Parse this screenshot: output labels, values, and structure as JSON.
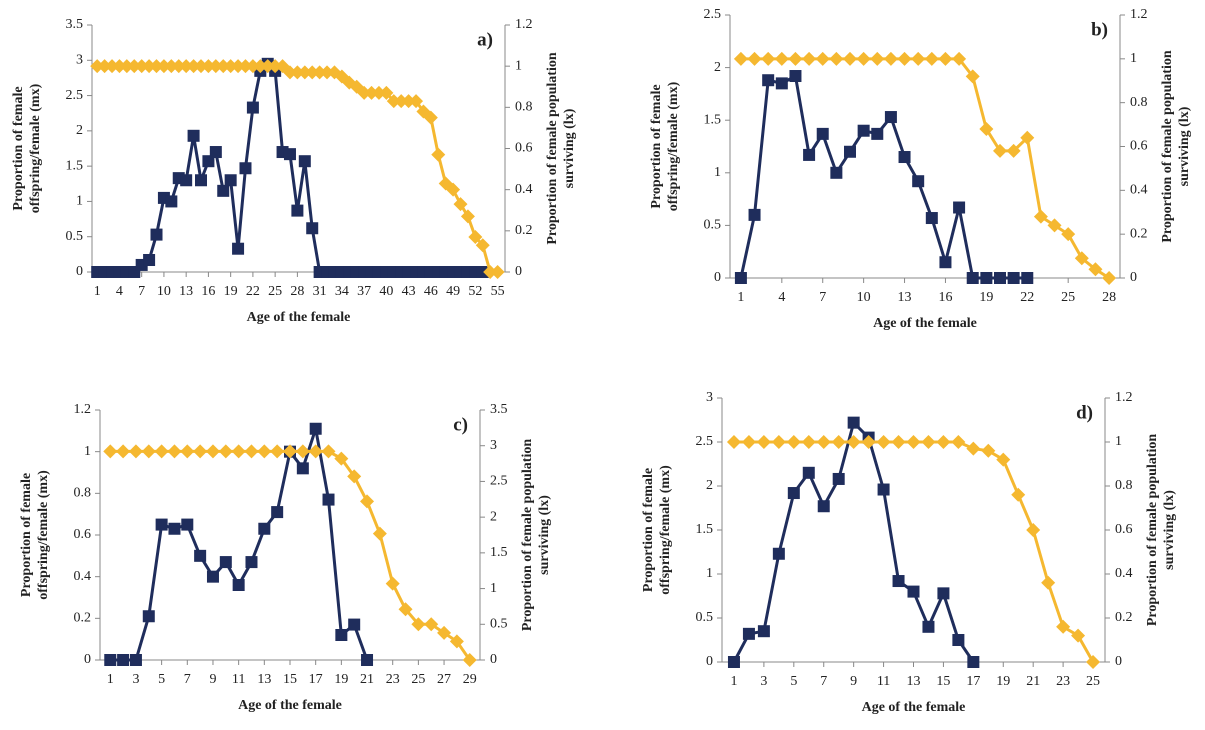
{
  "chart_data": [
    {
      "type": "line",
      "label": "a)",
      "xlabel": "Age of the female",
      "ylabel": [
        "Proportion of female",
        "offspring/female (mx)"
      ],
      "y2label": [
        "Proportion of female population",
        "surviving  (lx)"
      ],
      "x": [
        1,
        2,
        3,
        4,
        5,
        6,
        7,
        8,
        9,
        10,
        11,
        12,
        13,
        14,
        15,
        16,
        17,
        18,
        19,
        20,
        21,
        22,
        23,
        24,
        25,
        26,
        27,
        28,
        29,
        30,
        31,
        32,
        33,
        34,
        35,
        36,
        37,
        38,
        39,
        40,
        41,
        42,
        43,
        44,
        45,
        46,
        47,
        48,
        49,
        50,
        51,
        52,
        53,
        54,
        55
      ],
      "xlim": [
        0.3,
        56
      ],
      "xticks": [
        1,
        4,
        7,
        10,
        13,
        16,
        19,
        22,
        25,
        28,
        31,
        34,
        37,
        40,
        43,
        46,
        49,
        52,
        55
      ],
      "ylim": [
        0,
        3.5
      ],
      "yticks": [
        0,
        0.5,
        1,
        1.5,
        2,
        2.5,
        3,
        3.5
      ],
      "y2lim": [
        0,
        1.2
      ],
      "y2ticks": [
        0,
        0.2,
        0.4,
        0.6,
        0.8,
        1,
        1.2
      ],
      "series": [
        {
          "color": "#1f2d5c",
          "marker": "square",
          "values": [
            0,
            0,
            0,
            0,
            0,
            0,
            0.1,
            0.17,
            0.53,
            1.05,
            1,
            1.33,
            1.3,
            1.93,
            1.3,
            1.57,
            1.7,
            1.15,
            1.3,
            0.33,
            1.47,
            2.33,
            2.85,
            2.95,
            2.85,
            1.7,
            1.67,
            0.87,
            1.57,
            0.62,
            0,
            0,
            0,
            0,
            0,
            0,
            0,
            0,
            0,
            0,
            0,
            0,
            0,
            0,
            0,
            0,
            0,
            0,
            0,
            0,
            0,
            0,
            0,
            null,
            null
          ]
        },
        {
          "color": "#f5b830",
          "marker": "diamond",
          "axis": "y2",
          "values": [
            1,
            1,
            1,
            1,
            1,
            1,
            1,
            1,
            1,
            1,
            1,
            1,
            1,
            1,
            1,
            1,
            1,
            1,
            1,
            1,
            1,
            1,
            1,
            1,
            1,
            1,
            0.97,
            0.97,
            0.97,
            0.97,
            0.97,
            0.97,
            0.97,
            0.95,
            0.92,
            0.9,
            0.87,
            0.87,
            0.87,
            0.87,
            0.83,
            0.83,
            0.83,
            0.83,
            0.78,
            0.75,
            0.57,
            0.43,
            0.4,
            0.33,
            0.27,
            0.17,
            0.13,
            0,
            0
          ]
        }
      ]
    },
    {
      "type": "line",
      "label": "b)",
      "xlabel": "Age of the female",
      "ylabel": [
        "Proportion of female",
        "offspring/female (mx)"
      ],
      "y2label": [
        "Proportion of female population",
        "surviving  (lx)"
      ],
      "x": [
        1,
        2,
        3,
        4,
        5,
        6,
        7,
        8,
        9,
        10,
        11,
        12,
        13,
        14,
        15,
        16,
        17,
        18,
        19,
        20,
        21,
        22,
        23,
        24,
        25,
        26,
        27,
        28
      ],
      "xlim": [
        0.2,
        28.8
      ],
      "xticks": [
        1,
        4,
        7,
        10,
        13,
        16,
        19,
        22,
        25,
        28
      ],
      "ylim": [
        0,
        2.5
      ],
      "yticks": [
        0,
        0.5,
        1,
        1.5,
        2,
        2.5
      ],
      "y2lim": [
        0,
        1.2
      ],
      "y2ticks": [
        0,
        0.2,
        0.4,
        0.6,
        0.8,
        1,
        1.2
      ],
      "series": [
        {
          "color": "#1f2d5c",
          "marker": "square",
          "values": [
            0,
            0.6,
            1.88,
            1.85,
            1.92,
            1.17,
            1.37,
            1,
            1.2,
            1.4,
            1.37,
            1.53,
            1.15,
            0.92,
            0.57,
            0.15,
            0.67,
            0,
            0,
            0,
            0,
            0,
            null,
            null,
            null,
            null,
            null,
            null
          ]
        },
        {
          "color": "#f5b830",
          "marker": "diamond",
          "axis": "y2",
          "values": [
            1,
            1,
            1,
            1,
            1,
            1,
            1,
            1,
            1,
            1,
            1,
            1,
            1,
            1,
            1,
            1,
            1,
            0.92,
            0.68,
            0.58,
            0.58,
            0.64,
            0.28,
            0.24,
            0.2,
            0.09,
            0.04,
            0
          ]
        }
      ]
    },
    {
      "type": "line",
      "label": "c)",
      "xlabel": "Age of the female",
      "ylabel": [
        "Proportion of female",
        "offspring/female (mx)"
      ],
      "y2label": [
        "Proportion of female population",
        "surviving  (lx)"
      ],
      "x": [
        1,
        2,
        3,
        4,
        5,
        6,
        7,
        8,
        9,
        10,
        11,
        12,
        13,
        14,
        15,
        16,
        17,
        18,
        19,
        20,
        21,
        22,
        23,
        24,
        25,
        26,
        27,
        28,
        29
      ],
      "xlim": [
        0.2,
        29.8
      ],
      "xticks": [
        1,
        3,
        5,
        7,
        9,
        11,
        13,
        15,
        17,
        19,
        21,
        23,
        25,
        27,
        29
      ],
      "ylim": [
        0,
        1.2
      ],
      "yticks": [
        0,
        0.2,
        0.4,
        0.6,
        0.8,
        1,
        1.2
      ],
      "y2lim": [
        0,
        3.5
      ],
      "y2ticks": [
        0,
        0.5,
        1,
        1.5,
        2,
        2.5,
        3,
        3.5
      ],
      "series": [
        {
          "color": "#1f2d5c",
          "marker": "square",
          "values": [
            0,
            0,
            0,
            0.21,
            0.65,
            0.63,
            0.65,
            0.5,
            0.4,
            0.47,
            0.36,
            0.47,
            0.63,
            0.71,
            1,
            0.92,
            1.11,
            0.77,
            0.12,
            0.17,
            0,
            null,
            null,
            null,
            null,
            null,
            null,
            null,
            null
          ]
        },
        {
          "color": "#f5b830",
          "marker": "diamond",
          "axis": "y2",
          "values": [
            2.92,
            2.92,
            2.92,
            2.92,
            2.92,
            2.92,
            2.92,
            2.92,
            2.92,
            2.92,
            2.92,
            2.92,
            2.92,
            2.92,
            2.92,
            2.92,
            2.92,
            2.92,
            2.82,
            2.57,
            2.22,
            1.77,
            1.07,
            0.71,
            0.5,
            0.5,
            0.38,
            0.26,
            0
          ]
        }
      ]
    },
    {
      "type": "line",
      "label": "d)",
      "xlabel": "Age of the female",
      "ylabel": [
        "Proportion of female",
        "offspring/female (mx)"
      ],
      "y2label": [
        "Proportion of female population",
        "surviving  (lx)"
      ],
      "x": [
        1,
        2,
        3,
        4,
        5,
        6,
        7,
        8,
        9,
        10,
        11,
        12,
        13,
        14,
        15,
        16,
        17,
        18,
        19,
        20,
        21,
        22,
        23,
        24,
        25
      ],
      "xlim": [
        0.2,
        25.8
      ],
      "xticks": [
        1,
        3,
        5,
        7,
        9,
        11,
        13,
        15,
        17,
        19,
        21,
        23,
        25
      ],
      "ylim": [
        0,
        3
      ],
      "yticks": [
        0,
        0.5,
        1,
        1.5,
        2,
        2.5,
        3
      ],
      "y2lim": [
        0,
        1.2
      ],
      "y2ticks": [
        0,
        0.2,
        0.4,
        0.6,
        0.8,
        1,
        1.2
      ],
      "series": [
        {
          "color": "#1f2d5c",
          "marker": "square",
          "values": [
            0,
            0.32,
            0.35,
            1.23,
            1.92,
            2.15,
            1.77,
            2.08,
            2.72,
            2.55,
            1.96,
            0.92,
            0.8,
            0.4,
            0.78,
            0.25,
            0,
            null,
            null,
            null,
            null,
            null,
            null,
            null,
            null
          ]
        },
        {
          "color": "#f5b830",
          "marker": "diamond",
          "axis": "y2",
          "values": [
            1,
            1,
            1,
            1,
            1,
            1,
            1,
            1,
            1,
            1,
            1,
            1,
            1,
            1,
            1,
            1,
            0.97,
            0.96,
            0.92,
            0.76,
            0.6,
            0.36,
            0.16,
            0.12,
            0
          ]
        }
      ]
    }
  ]
}
